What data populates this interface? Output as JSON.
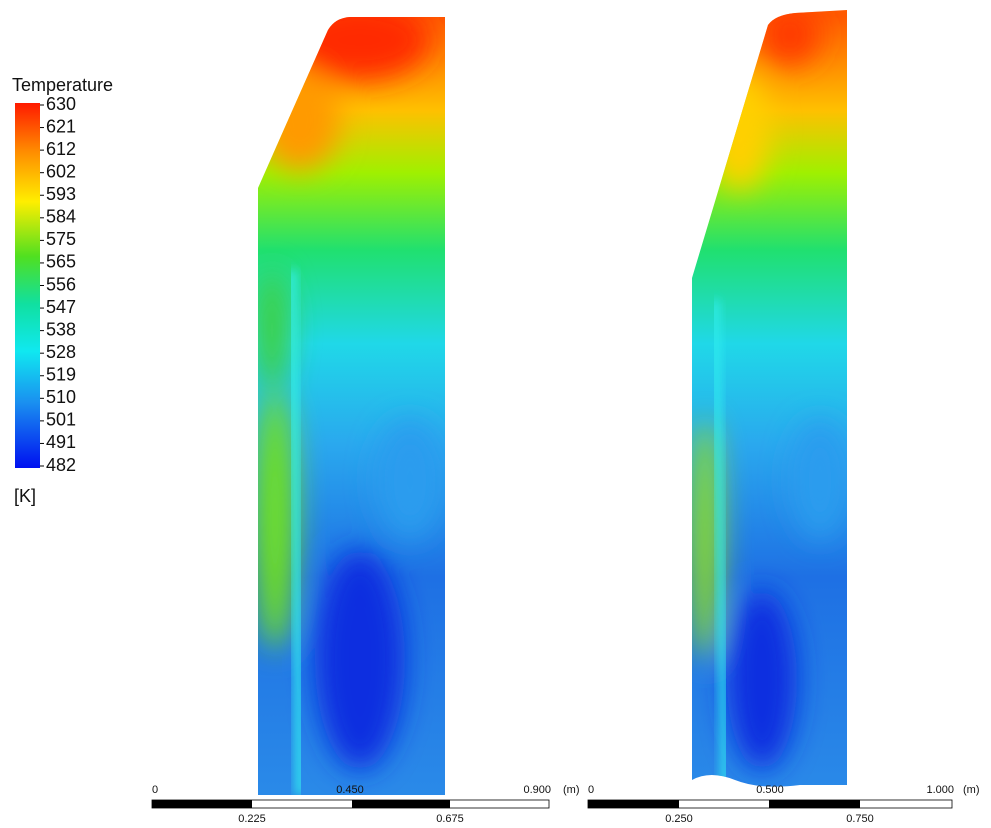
{
  "legend": {
    "title": "Temperature",
    "labels": [
      "630",
      "621",
      "612",
      "602",
      "593",
      "584",
      "575",
      "565",
      "556",
      "547",
      "538",
      "528",
      "519",
      "510",
      "501",
      "491",
      "482"
    ],
    "unit": "[K]"
  },
  "scale_bars": [
    {
      "top": [
        "0",
        "0.450",
        "0.900"
      ],
      "unit": "(m)",
      "bottom": [
        "0.225",
        "0.675"
      ]
    },
    {
      "top": [
        "0",
        "0.500",
        "1.000"
      ],
      "unit": "(m)",
      "bottom": [
        "0.250",
        "0.750"
      ]
    }
  ]
}
